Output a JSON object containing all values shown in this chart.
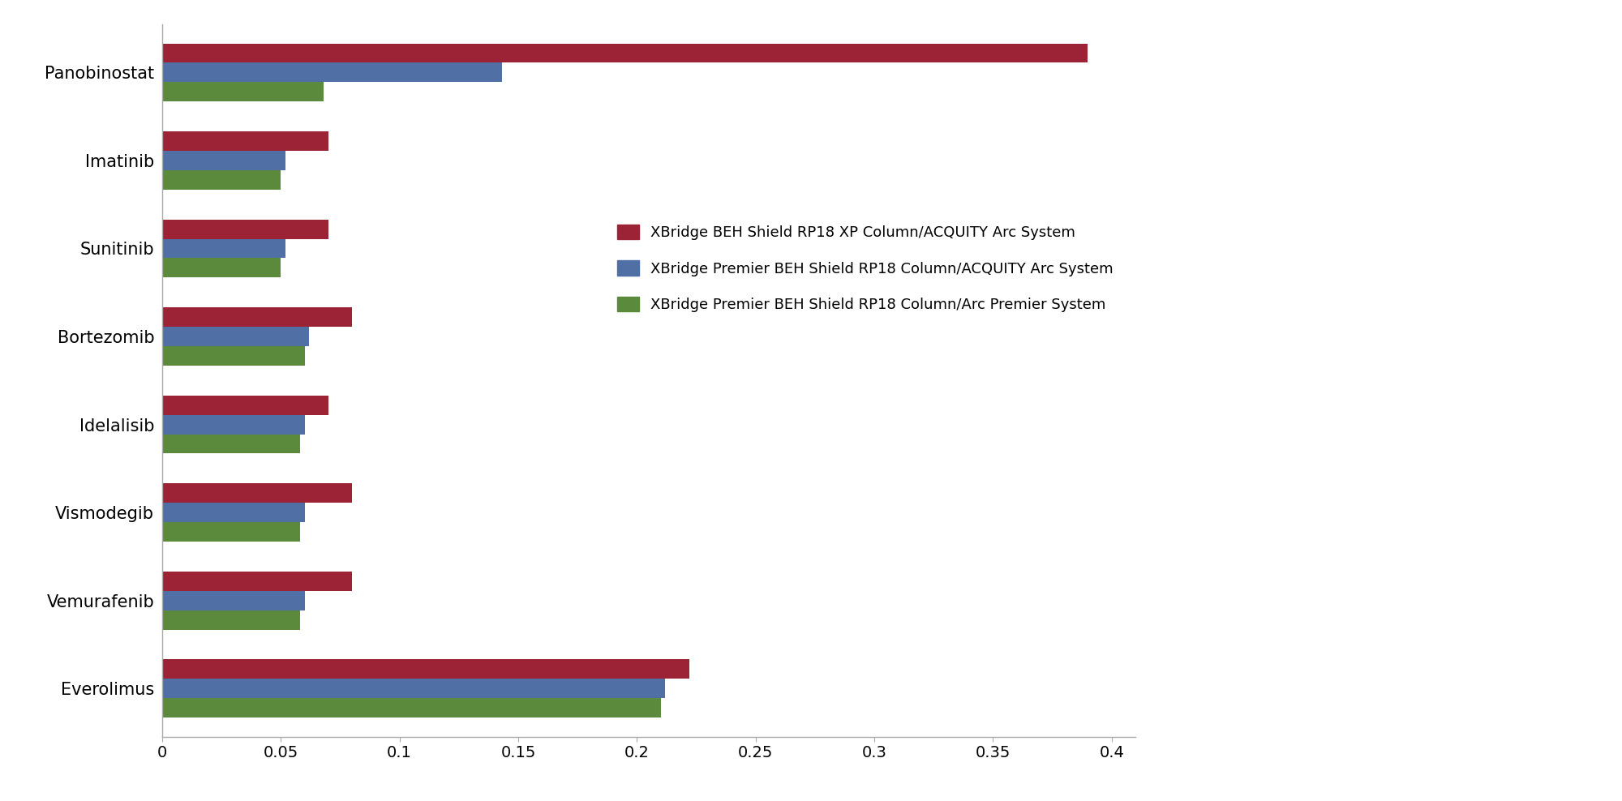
{
  "categories": [
    "Everolimus",
    "Vemurafenib",
    "Vismodegib",
    "Idelalisib",
    "Bortezomib",
    "Sunitinib",
    "Imatinib",
    "Panobinostat"
  ],
  "series": {
    "red": {
      "label": "XBridge BEH Shield RP18 XP Column/ACQUITY Arc System",
      "color": "#9B2335",
      "values": [
        0.222,
        0.08,
        0.08,
        0.07,
        0.08,
        0.07,
        0.07,
        0.39
      ]
    },
    "blue": {
      "label": "XBridge Premier BEH Shield RP18 Column/ACQUITY Arc System",
      "color": "#4F6FA5",
      "values": [
        0.212,
        0.06,
        0.06,
        0.06,
        0.062,
        0.052,
        0.052,
        0.143
      ]
    },
    "green": {
      "label": "XBridge Premier BEH Shield RP18 Column/Arc Premier System",
      "color": "#5C8A3C",
      "values": [
        0.21,
        0.058,
        0.058,
        0.058,
        0.06,
        0.05,
        0.05,
        0.068
      ]
    }
  },
  "xlim": [
    0,
    0.41
  ],
  "xticks": [
    0,
    0.05,
    0.1,
    0.15,
    0.2,
    0.25,
    0.3,
    0.35,
    0.4
  ],
  "xtick_labels": [
    "0",
    "0.05",
    "0.1",
    "0.15",
    "0.2",
    "0.25",
    "0.3",
    "0.35",
    "0.4"
  ],
  "bar_height": 0.22,
  "background_color": "#FFFFFF",
  "tick_fontsize": 14,
  "label_fontsize": 15,
  "legend_fontsize": 13
}
